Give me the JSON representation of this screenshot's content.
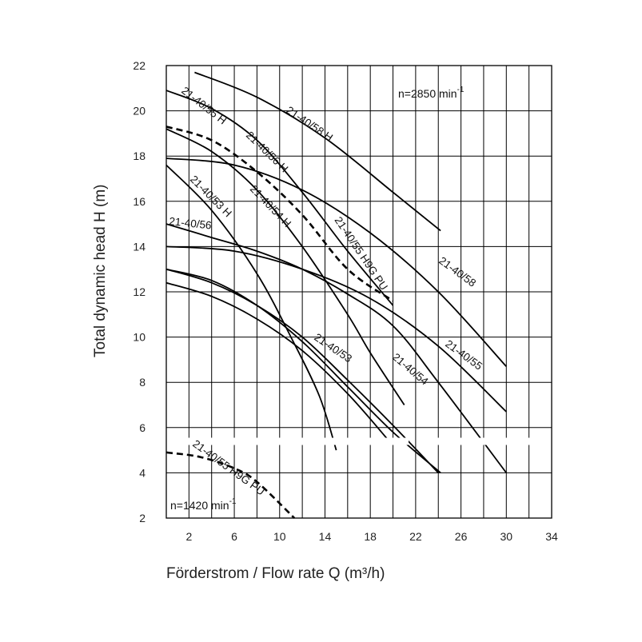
{
  "chart_data": {
    "type": "line",
    "title": "",
    "xlabel": "Förderstrom /  Flow rate    Q (m³/h)",
    "ylabel": "Total dynamic head    H (m)",
    "xlim": [
      0,
      34
    ],
    "ylim": [
      2,
      22
    ],
    "x_ticks": [
      "2",
      "6",
      "10",
      "14",
      "18",
      "22",
      "26",
      "30",
      "34"
    ],
    "y_ticks": [
      "22",
      "20",
      "18",
      "16",
      "14",
      "12",
      "10",
      "8",
      "6",
      "4",
      "2"
    ],
    "grid": true,
    "annotations": {
      "speed_high": "n=2850 min",
      "speed_high_sup": "-1",
      "speed_low": "n=1420 min",
      "speed_low_sup": "-1"
    },
    "series": [
      {
        "name": "21-40/58 H",
        "style": "solid",
        "x": [
          2.5,
          8,
          14,
          20,
          24.2
        ],
        "y": [
          21.7,
          20.6,
          18.8,
          16.4,
          14.7
        ]
      },
      {
        "name": "21-40/55 H",
        "style": "solid",
        "x": [
          0,
          4,
          8,
          12,
          16,
          20
        ],
        "y": [
          20.9,
          20.1,
          18.7,
          16.4,
          13.8,
          11.4
        ]
      },
      {
        "name": "21-40/56 H",
        "style": "solid",
        "x": [
          0,
          4,
          8,
          12,
          16,
          18,
          21
        ],
        "y": [
          19.2,
          18.2,
          16.5,
          14.0,
          11.0,
          9.3,
          7.0
        ]
      },
      {
        "name": "21-40/54 H",
        "style": "solid",
        "x": [
          0,
          4,
          8,
          12,
          16,
          20,
          24.2
        ],
        "y": [
          13.0,
          12.5,
          11.4,
          9.8,
          7.8,
          5.8,
          4.0
        ]
      },
      {
        "name": "21-40/53 H",
        "style": "solid",
        "x": [
          0,
          4,
          8,
          11,
          13.5,
          15
        ],
        "y": [
          17.6,
          15.6,
          12.8,
          10.0,
          7.4,
          5.0
        ]
      },
      {
        "name": "21-40/56",
        "style": "solid",
        "x": [
          0,
          4,
          8,
          12,
          16,
          20,
          24,
          30
        ],
        "y": [
          15.0,
          14.4,
          13.8,
          13.0,
          11.9,
          10.5,
          8.0,
          4.0
        ]
      },
      {
        "name": "21-40/58",
        "style": "solid",
        "x": [
          0,
          6,
          12,
          18,
          24,
          30
        ],
        "y": [
          17.9,
          17.6,
          16.5,
          14.6,
          12.0,
          8.7
        ]
      },
      {
        "name": "21-40/55",
        "style": "solid",
        "x": [
          0,
          6,
          12,
          18,
          24,
          30
        ],
        "y": [
          14.0,
          13.8,
          13.0,
          11.7,
          9.6,
          6.7
        ]
      },
      {
        "name": "21-40/54",
        "style": "solid",
        "x": [
          0,
          4,
          8,
          12,
          16,
          20,
          24
        ],
        "y": [
          13.0,
          12.4,
          11.4,
          10.0,
          8.1,
          6.1,
          4.0
        ]
      },
      {
        "name": "21-40/53",
        "style": "solid",
        "x": [
          0,
          4,
          8,
          12,
          16,
          19.5
        ],
        "y": [
          12.4,
          11.8,
          10.8,
          9.4,
          7.5,
          5.5
        ]
      },
      {
        "name": "21-40/55 H9G PU",
        "style": "dashed",
        "x": [
          0,
          4,
          8,
          12,
          16,
          20
        ],
        "y": [
          19.3,
          18.7,
          17.3,
          15.4,
          13.0,
          11.6
        ]
      },
      {
        "name": "21-40/55 H9G PU",
        "style": "dashed",
        "x": [
          0,
          3,
          6,
          8,
          11.3
        ],
        "y": [
          4.9,
          4.7,
          4.2,
          3.6,
          2.0
        ]
      }
    ]
  }
}
